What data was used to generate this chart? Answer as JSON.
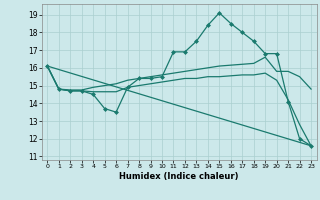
{
  "title": "",
  "xlabel": "Humidex (Indice chaleur)",
  "bg_color": "#cce8ea",
  "line_color": "#1a7a6e",
  "grid_color": "#aacfcf",
  "xlim": [
    -0.5,
    23.5
  ],
  "ylim": [
    10.8,
    19.6
  ],
  "yticks": [
    11,
    12,
    13,
    14,
    15,
    16,
    17,
    18,
    19
  ],
  "xticks": [
    0,
    1,
    2,
    3,
    4,
    5,
    6,
    7,
    8,
    9,
    10,
    11,
    12,
    13,
    14,
    15,
    16,
    17,
    18,
    19,
    20,
    21,
    22,
    23
  ],
  "series": [
    {
      "x": [
        0,
        1,
        2,
        3,
        4,
        5,
        6,
        7,
        8,
        9,
        10,
        11,
        12,
        13,
        14,
        15,
        16,
        17,
        18,
        19,
        20,
        21,
        22,
        23
      ],
      "y": [
        16.1,
        14.8,
        14.7,
        14.7,
        14.5,
        13.7,
        13.5,
        14.9,
        15.4,
        15.4,
        15.5,
        16.9,
        16.9,
        17.5,
        18.4,
        19.1,
        18.5,
        18.0,
        17.5,
        16.8,
        16.8,
        14.1,
        12.0,
        11.6
      ],
      "marker": true,
      "linewidth": 0.9
    },
    {
      "x": [
        0,
        1,
        2,
        3,
        4,
        5,
        6,
        7,
        8,
        9,
        10,
        11,
        12,
        13,
        14,
        15,
        16,
        17,
        18,
        19,
        20,
        21,
        22,
        23
      ],
      "y": [
        16.1,
        14.8,
        14.75,
        14.75,
        14.9,
        15.0,
        15.1,
        15.3,
        15.4,
        15.5,
        15.6,
        15.7,
        15.8,
        15.9,
        16.0,
        16.1,
        16.15,
        16.2,
        16.25,
        16.6,
        15.8,
        15.8,
        15.5,
        14.8
      ],
      "marker": false,
      "linewidth": 0.9
    },
    {
      "x": [
        0,
        1,
        2,
        3,
        4,
        5,
        6,
        7,
        8,
        9,
        10,
        11,
        12,
        13,
        14,
        15,
        16,
        17,
        18,
        19,
        20,
        21,
        22,
        23
      ],
      "y": [
        16.1,
        14.8,
        14.7,
        14.7,
        14.65,
        14.65,
        14.65,
        14.9,
        15.0,
        15.1,
        15.2,
        15.3,
        15.4,
        15.4,
        15.5,
        15.5,
        15.55,
        15.6,
        15.6,
        15.7,
        15.3,
        14.2,
        12.8,
        11.6
      ],
      "marker": false,
      "linewidth": 0.9
    },
    {
      "x": [
        0,
        23
      ],
      "y": [
        16.1,
        11.6
      ],
      "marker": false,
      "linewidth": 0.9
    }
  ]
}
